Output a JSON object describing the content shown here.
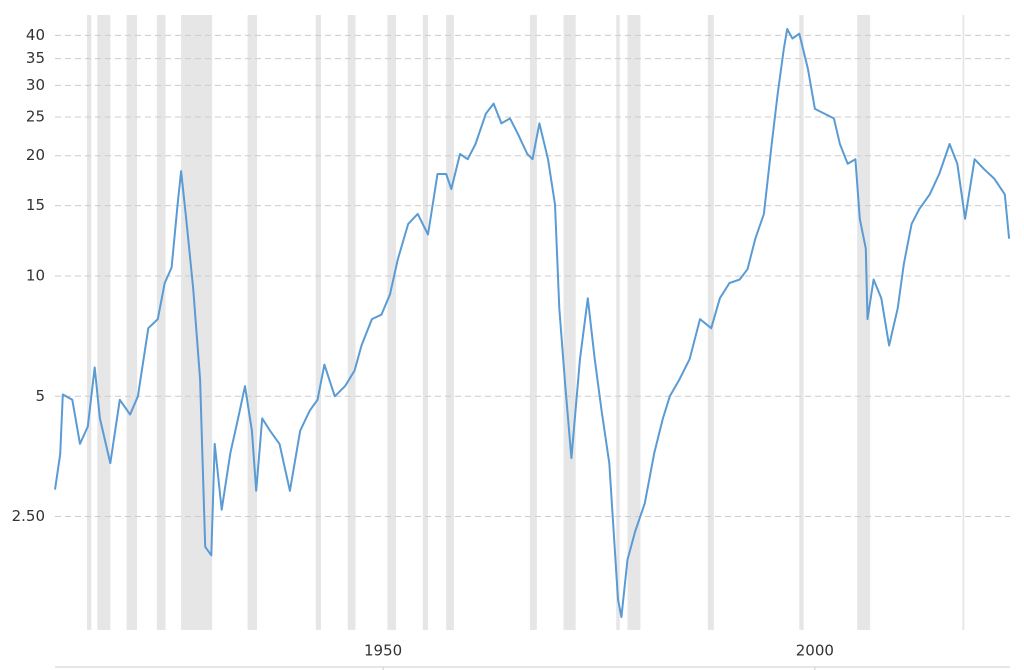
{
  "chart_data": {
    "type": "line",
    "log_scale": true,
    "grid": true,
    "color": "#5a9bd4",
    "band_color": "#e6e6e6",
    "xlim": [
      1912,
      2022.6
    ],
    "xticks": [
      1950,
      2000
    ],
    "ylim": [
      1.3,
      45
    ],
    "yticks": [
      {
        "value": 2.5,
        "label": "2.50"
      },
      5,
      10,
      15,
      20,
      25,
      30,
      35,
      40
    ],
    "recessions": [
      [
        1915.7,
        1916.2
      ],
      [
        1916.9,
        1918.4
      ],
      [
        1920.3,
        1921.5
      ],
      [
        1923.8,
        1924.8
      ],
      [
        1926.6,
        1930.2
      ],
      [
        1934.3,
        1935.4
      ],
      [
        1942.2,
        1942.8
      ],
      [
        1945.9,
        1946.8
      ],
      [
        1950.5,
        1951.5
      ],
      [
        1954.6,
        1955.2
      ],
      [
        1957.3,
        1958.2
      ],
      [
        1967.0,
        1967.8
      ],
      [
        1970.9,
        1972.3
      ],
      [
        1977.0,
        1977.4
      ],
      [
        1978.3,
        1979.8
      ],
      [
        1987.6,
        1988.3
      ],
      [
        1998.2,
        1998.7
      ],
      [
        2004.9,
        2006.4
      ],
      [
        2017.1,
        2017.3
      ]
    ],
    "x": [
      1912.0,
      1912.6,
      1912.9,
      1914.0,
      1914.9,
      1915.8,
      1916.6,
      1917.2,
      1918.4,
      1919.5,
      1920.7,
      1921.6,
      1922.8,
      1923.9,
      1924.7,
      1925.5,
      1926.2,
      1926.6,
      1927.2,
      1928.0,
      1928.8,
      1929.4,
      1930.1,
      1930.5,
      1931.3,
      1932.3,
      1933.2,
      1934.0,
      1934.8,
      1935.3,
      1936.0,
      1936.9,
      1938.0,
      1939.2,
      1940.4,
      1941.5,
      1942.4,
      1943.2,
      1944.4,
      1945.6,
      1946.7,
      1947.5,
      1948.7,
      1949.8,
      1950.8,
      1951.7,
      1952.9,
      1954.0,
      1955.2,
      1956.3,
      1957.3,
      1957.9,
      1958.9,
      1959.8,
      1960.7,
      1961.9,
      1962.8,
      1963.7,
      1964.7,
      1965.6,
      1966.7,
      1967.3,
      1968.1,
      1969.1,
      1969.9,
      1970.4,
      1971.1,
      1971.8,
      1972.8,
      1973.7,
      1974.5,
      1975.3,
      1976.2,
      1977.2,
      1977.6,
      1978.3,
      1979.2,
      1980.3,
      1981.4,
      1982.4,
      1983.2,
      1984.3,
      1985.5,
      1986.7,
      1988.0,
      1989.0,
      1990.1,
      1991.3,
      1992.2,
      1993.1,
      1994.1,
      1995.0,
      1995.7,
      1996.4,
      1996.8,
      1997.4,
      1998.2,
      1999.2,
      2000.0,
      2001.1,
      2002.2,
      2002.9,
      2003.8,
      2004.7,
      2005.2,
      2005.9,
      2006.1,
      2006.8,
      2007.7,
      2008.6,
      2009.6,
      2010.3,
      2011.2,
      2012.1,
      2013.3,
      2014.4,
      2015.6,
      2016.5,
      2017.4,
      2018.5,
      2019.6,
      2020.8,
      2022.0,
      2022.5
    ],
    "values": [
      2.92,
      3.58,
      5.05,
      4.9,
      3.8,
      4.2,
      5.9,
      4.4,
      3.4,
      4.9,
      4.5,
      5.0,
      7.4,
      7.8,
      9.6,
      10.5,
      15.1,
      18.3,
      13.9,
      9.3,
      5.5,
      2.1,
      2.0,
      3.8,
      2.6,
      3.6,
      4.4,
      5.3,
      4.1,
      2.9,
      4.4,
      4.1,
      3.8,
      2.9,
      4.1,
      4.6,
      4.9,
      6.0,
      5.0,
      5.3,
      5.8,
      6.7,
      7.8,
      8.0,
      9.0,
      11.0,
      13.5,
      14.3,
      12.7,
      18.0,
      18.0,
      16.5,
      20.2,
      19.6,
      21.4,
      25.5,
      27.0,
      24.1,
      24.8,
      22.7,
      20.2,
      19.6,
      24.1,
      19.6,
      15.1,
      8.3,
      5.3,
      3.5,
      6.2,
      8.8,
      6.2,
      4.6,
      3.4,
      1.55,
      1.4,
      1.95,
      2.3,
      2.7,
      3.6,
      4.4,
      5.0,
      5.5,
      6.2,
      7.8,
      7.4,
      8.8,
      9.6,
      9.8,
      10.4,
      12.4,
      14.3,
      21.4,
      28.6,
      37.0,
      41.5,
      39.3,
      40.4,
      33.0,
      26.2,
      25.5,
      24.8,
      21.4,
      19.1,
      19.6,
      13.9,
      11.7,
      7.8,
      9.8,
      8.8,
      6.7,
      8.3,
      10.7,
      13.5,
      14.7,
      16.0,
      18.0,
      21.4,
      19.1,
      13.9,
      19.6,
      18.5,
      17.5,
      16.0,
      12.4
    ]
  }
}
